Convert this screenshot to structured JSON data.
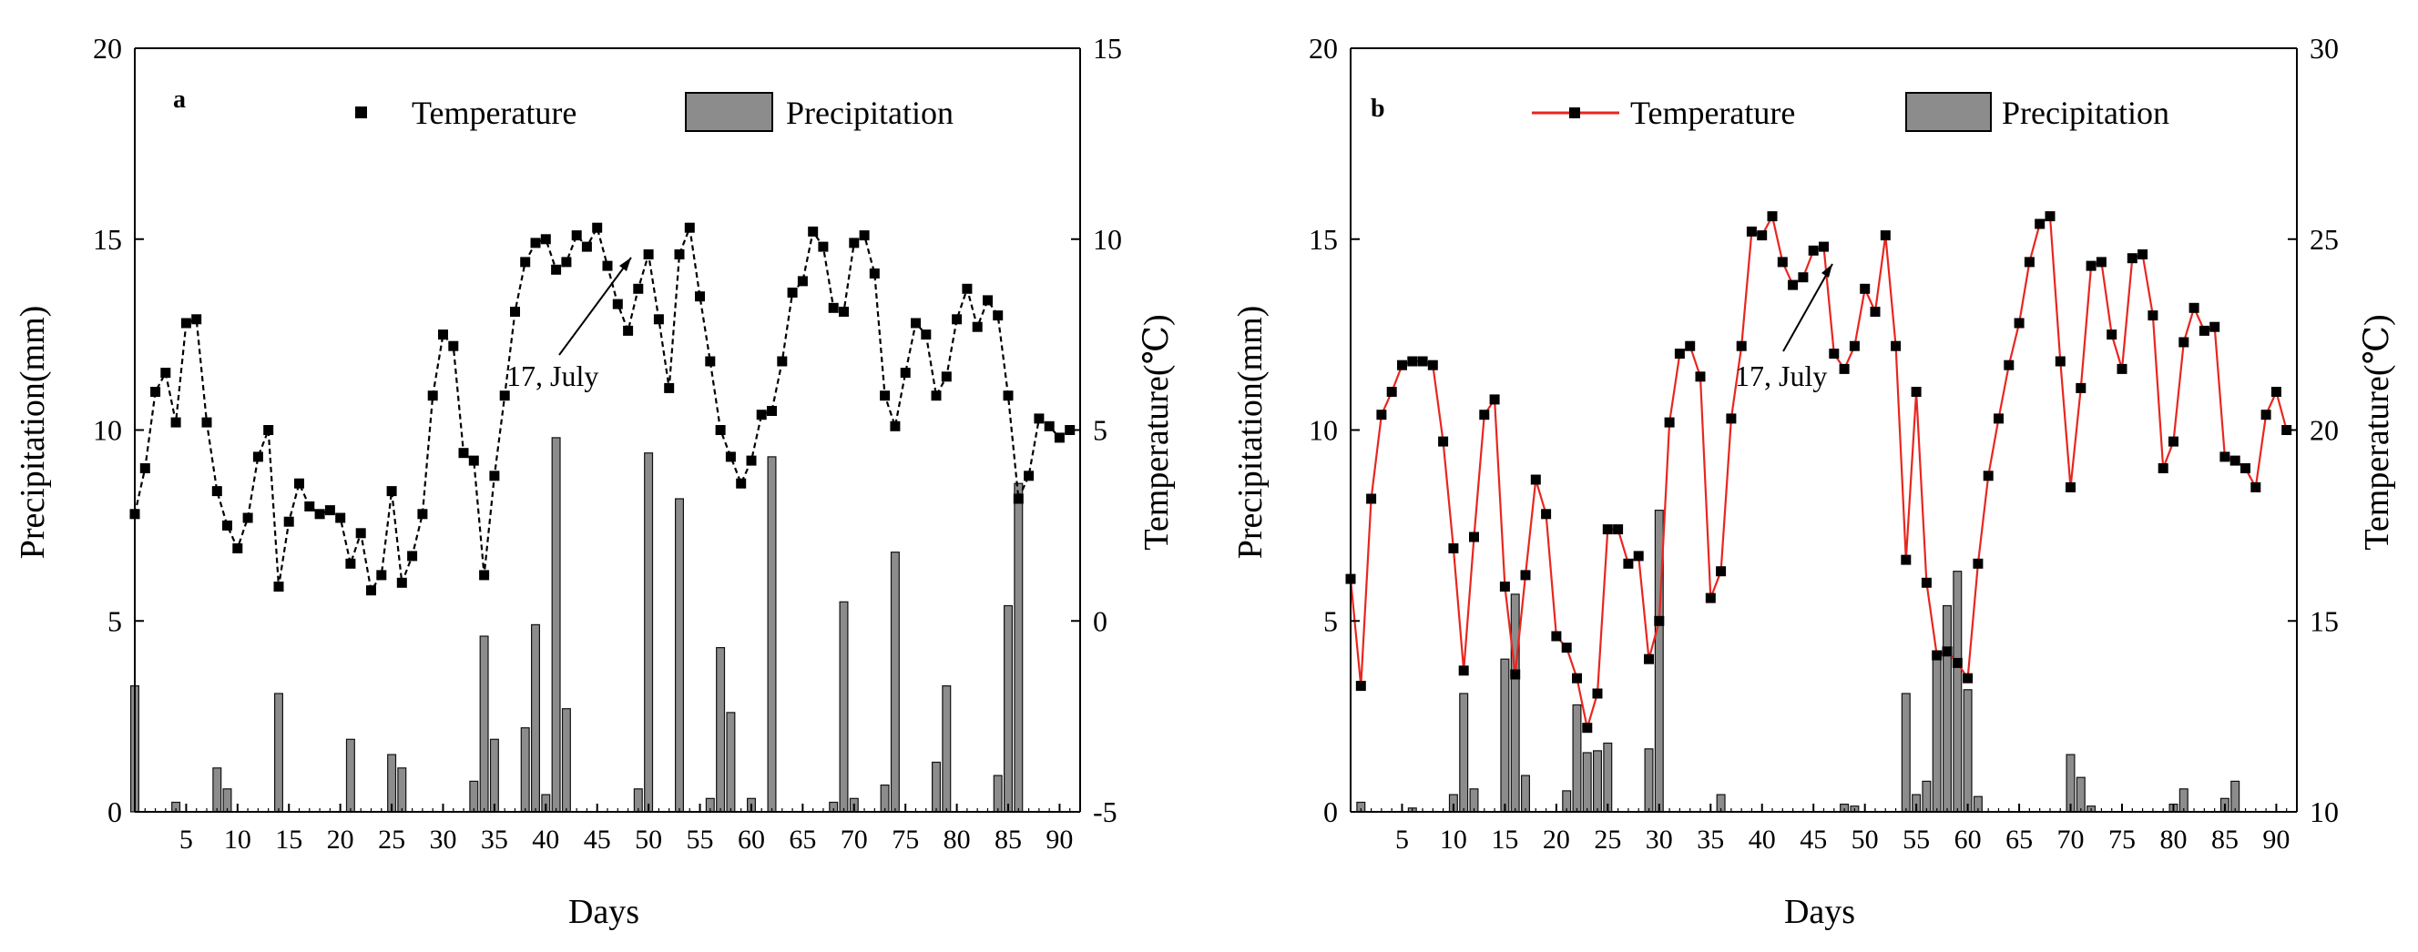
{
  "chart_data": [
    {
      "panel_label": "a",
      "type": "bar+line",
      "xlabel": "Days",
      "ylabel_left": "Precipitation(mm)",
      "ylabel_right": "Temperature(℃)",
      "xlim": [
        0,
        92
      ],
      "ylim_left": [
        0,
        20
      ],
      "ylim_right": [
        -5,
        15
      ],
      "x_ticks": [
        5,
        10,
        15,
        20,
        25,
        30,
        35,
        40,
        45,
        50,
        55,
        60,
        65,
        70,
        75,
        80,
        85,
        90
      ],
      "y_left_ticks": [
        0,
        5,
        10,
        15,
        20
      ],
      "y_right_ticks": [
        -5,
        0,
        5,
        10,
        15
      ],
      "legend": {
        "temperature": "Temperature",
        "precipitation": "Precipitation",
        "line_color": "#000000",
        "line_style": "dashed"
      },
      "annotation": {
        "text": "17, July",
        "day": 46,
        "value": 9.3
      },
      "temperature": [
        [
          0,
          2.8
        ],
        [
          1,
          4.0
        ],
        [
          2,
          6.0
        ],
        [
          3,
          6.5
        ],
        [
          4,
          5.2
        ],
        [
          5,
          7.8
        ],
        [
          6,
          7.9
        ],
        [
          7,
          5.2
        ],
        [
          8,
          3.4
        ],
        [
          9,
          2.5
        ],
        [
          10,
          1.9
        ],
        [
          11,
          2.7
        ],
        [
          12,
          4.3
        ],
        [
          13,
          5.0
        ],
        [
          14,
          0.9
        ],
        [
          15,
          2.6
        ],
        [
          16,
          3.6
        ],
        [
          17,
          3.0
        ],
        [
          18,
          2.8
        ],
        [
          19,
          2.9
        ],
        [
          20,
          2.7
        ],
        [
          21,
          1.5
        ],
        [
          22,
          2.3
        ],
        [
          23,
          0.8
        ],
        [
          24,
          1.2
        ],
        [
          25,
          3.4
        ],
        [
          26,
          1.0
        ],
        [
          27,
          1.7
        ],
        [
          28,
          2.8
        ],
        [
          29,
          5.9
        ],
        [
          30,
          7.5
        ],
        [
          31,
          7.2
        ],
        [
          32,
          4.4
        ],
        [
          33,
          4.2
        ],
        [
          34,
          1.2
        ],
        [
          35,
          3.8
        ],
        [
          36,
          5.9
        ],
        [
          37,
          8.1
        ],
        [
          38,
          9.4
        ],
        [
          39,
          9.9
        ],
        [
          40,
          10.0
        ],
        [
          41,
          9.2
        ],
        [
          42,
          9.4
        ],
        [
          43,
          10.1
        ],
        [
          44,
          9.8
        ],
        [
          45,
          10.3
        ],
        [
          46,
          9.3
        ],
        [
          47,
          8.3
        ],
        [
          48,
          7.6
        ],
        [
          49,
          8.7
        ],
        [
          50,
          9.6
        ],
        [
          51,
          7.9
        ],
        [
          52,
          6.1
        ],
        [
          53,
          9.6
        ],
        [
          54,
          10.3
        ],
        [
          55,
          8.5
        ],
        [
          56,
          6.8
        ],
        [
          57,
          5.0
        ],
        [
          58,
          4.3
        ],
        [
          59,
          3.6
        ],
        [
          60,
          4.2
        ],
        [
          61,
          5.4
        ],
        [
          62,
          5.5
        ],
        [
          63,
          6.8
        ],
        [
          64,
          8.6
        ],
        [
          65,
          8.9
        ],
        [
          66,
          10.2
        ],
        [
          67,
          9.8
        ],
        [
          68,
          8.2
        ],
        [
          69,
          8.1
        ],
        [
          70,
          9.9
        ],
        [
          71,
          10.1
        ],
        [
          72,
          9.1
        ],
        [
          73,
          5.9
        ],
        [
          74,
          5.1
        ],
        [
          75,
          6.5
        ],
        [
          76,
          7.8
        ],
        [
          77,
          7.5
        ],
        [
          78,
          5.9
        ],
        [
          79,
          6.4
        ],
        [
          80,
          7.9
        ],
        [
          81,
          8.7
        ],
        [
          82,
          7.7
        ],
        [
          83,
          8.4
        ],
        [
          84,
          8.0
        ],
        [
          85,
          5.9
        ],
        [
          86,
          3.2
        ],
        [
          87,
          3.8
        ],
        [
          88,
          5.3
        ],
        [
          89,
          5.1
        ],
        [
          90,
          4.8
        ],
        [
          91,
          5.0
        ]
      ],
      "precipitation": [
        [
          0,
          3.3
        ],
        [
          4,
          0.25
        ],
        [
          8,
          1.15
        ],
        [
          9,
          0.6
        ],
        [
          14,
          3.1
        ],
        [
          21,
          1.9
        ],
        [
          25,
          1.5
        ],
        [
          26,
          1.15
        ],
        [
          33,
          0.8
        ],
        [
          34,
          4.6
        ],
        [
          35,
          1.9
        ],
        [
          38,
          2.2
        ],
        [
          39,
          4.9
        ],
        [
          40,
          0.45
        ],
        [
          41,
          9.8
        ],
        [
          42,
          2.7
        ],
        [
          49,
          0.6
        ],
        [
          50,
          9.4
        ],
        [
          53,
          8.2
        ],
        [
          56,
          0.35
        ],
        [
          57,
          4.3
        ],
        [
          58,
          2.6
        ],
        [
          60,
          0.35
        ],
        [
          62,
          9.3
        ],
        [
          68,
          0.25
        ],
        [
          69,
          5.5
        ],
        [
          70,
          0.35
        ],
        [
          73,
          0.7
        ],
        [
          74,
          6.8
        ],
        [
          78,
          1.3
        ],
        [
          79,
          3.3
        ],
        [
          84,
          0.95
        ],
        [
          85,
          5.4
        ],
        [
          86,
          8.6
        ]
      ]
    },
    {
      "panel_label": "b",
      "type": "bar+line",
      "xlabel": "Days",
      "ylabel_left": "Precipitation(mm)",
      "ylabel_right": "Temperature(℃)",
      "xlim": [
        0,
        92
      ],
      "ylim_left": [
        0,
        20
      ],
      "ylim_right": [
        10,
        30
      ],
      "x_ticks": [
        5,
        10,
        15,
        20,
        25,
        30,
        35,
        40,
        45,
        50,
        55,
        60,
        65,
        70,
        75,
        80,
        85,
        90
      ],
      "y_left_ticks": [
        0,
        5,
        10,
        15,
        20
      ],
      "y_right_ticks": [
        10,
        15,
        20,
        25,
        30
      ],
      "legend": {
        "temperature": "Temperature",
        "precipitation": "Precipitation",
        "line_color": "#e8261f",
        "line_style": "solid"
      },
      "annotation": {
        "text": "17, July",
        "day": 46,
        "value": 24.0
      },
      "temperature": [
        [
          0,
          16.1
        ],
        [
          1,
          13.3
        ],
        [
          2,
          18.2
        ],
        [
          3,
          20.4
        ],
        [
          4,
          21.0
        ],
        [
          5,
          21.7
        ],
        [
          6,
          21.8
        ],
        [
          7,
          21.8
        ],
        [
          8,
          21.7
        ],
        [
          9,
          19.7
        ],
        [
          10,
          16.9
        ],
        [
          11,
          13.7
        ],
        [
          12,
          17.2
        ],
        [
          13,
          20.4
        ],
        [
          14,
          20.8
        ],
        [
          15,
          15.9
        ],
        [
          16,
          13.6
        ],
        [
          17,
          16.2
        ],
        [
          18,
          18.7
        ],
        [
          19,
          17.8
        ],
        [
          20,
          14.6
        ],
        [
          21,
          14.3
        ],
        [
          22,
          13.5
        ],
        [
          23,
          12.2
        ],
        [
          24,
          13.1
        ],
        [
          25,
          17.4
        ],
        [
          26,
          17.4
        ],
        [
          27,
          16.5
        ],
        [
          28,
          16.7
        ],
        [
          29,
          14.0
        ],
        [
          30,
          15.0
        ],
        [
          31,
          20.2
        ],
        [
          32,
          22.0
        ],
        [
          33,
          22.2
        ],
        [
          34,
          21.4
        ],
        [
          35,
          15.6
        ],
        [
          36,
          16.3
        ],
        [
          37,
          20.3
        ],
        [
          38,
          22.2
        ],
        [
          39,
          25.2
        ],
        [
          40,
          25.1
        ],
        [
          41,
          25.6
        ],
        [
          42,
          24.4
        ],
        [
          43,
          23.8
        ],
        [
          44,
          24.0
        ],
        [
          45,
          24.7
        ],
        [
          46,
          24.8
        ],
        [
          47,
          22.0
        ],
        [
          48,
          21.6
        ],
        [
          49,
          22.2
        ],
        [
          50,
          23.7
        ],
        [
          51,
          23.1
        ],
        [
          52,
          25.1
        ],
        [
          53,
          22.2
        ],
        [
          54,
          16.6
        ],
        [
          55,
          21.0
        ],
        [
          56,
          16.0
        ],
        [
          57,
          14.1
        ],
        [
          58,
          14.2
        ],
        [
          59,
          13.9
        ],
        [
          60,
          13.5
        ],
        [
          61,
          16.5
        ],
        [
          62,
          18.8
        ],
        [
          63,
          20.3
        ],
        [
          64,
          21.7
        ],
        [
          65,
          22.8
        ],
        [
          66,
          24.4
        ],
        [
          67,
          25.4
        ],
        [
          68,
          25.6
        ],
        [
          69,
          21.8
        ],
        [
          70,
          18.5
        ],
        [
          71,
          21.1
        ],
        [
          72,
          24.3
        ],
        [
          73,
          24.4
        ],
        [
          74,
          22.5
        ],
        [
          75,
          21.6
        ],
        [
          76,
          24.5
        ],
        [
          77,
          24.6
        ],
        [
          78,
          23.0
        ],
        [
          79,
          19.0
        ],
        [
          80,
          19.7
        ],
        [
          81,
          22.3
        ],
        [
          82,
          23.2
        ],
        [
          83,
          22.6
        ],
        [
          84,
          22.7
        ],
        [
          85,
          19.3
        ],
        [
          86,
          19.2
        ],
        [
          87,
          19.0
        ],
        [
          88,
          18.5
        ],
        [
          89,
          20.4
        ],
        [
          90,
          21.0
        ],
        [
          91,
          20.0
        ]
      ],
      "precipitation": [
        [
          1,
          0.25
        ],
        [
          6,
          0.1
        ],
        [
          10,
          0.45
        ],
        [
          11,
          3.1
        ],
        [
          12,
          0.6
        ],
        [
          15,
          4.0
        ],
        [
          16,
          5.7
        ],
        [
          17,
          0.95
        ],
        [
          21,
          0.55
        ],
        [
          22,
          2.8
        ],
        [
          23,
          1.55
        ],
        [
          24,
          1.6
        ],
        [
          25,
          1.8
        ],
        [
          29,
          1.65
        ],
        [
          30,
          7.9
        ],
        [
          36,
          0.45
        ],
        [
          48,
          0.2
        ],
        [
          49,
          0.15
        ],
        [
          54,
          3.1
        ],
        [
          55,
          0.45
        ],
        [
          56,
          0.8
        ],
        [
          57,
          4.0
        ],
        [
          58,
          5.4
        ],
        [
          59,
          6.3
        ],
        [
          60,
          3.2
        ],
        [
          61,
          0.4
        ],
        [
          70,
          1.5
        ],
        [
          71,
          0.9
        ],
        [
          72,
          0.15
        ],
        [
          80,
          0.2
        ],
        [
          81,
          0.6
        ],
        [
          85,
          0.35
        ],
        [
          86,
          0.8
        ]
      ]
    }
  ]
}
